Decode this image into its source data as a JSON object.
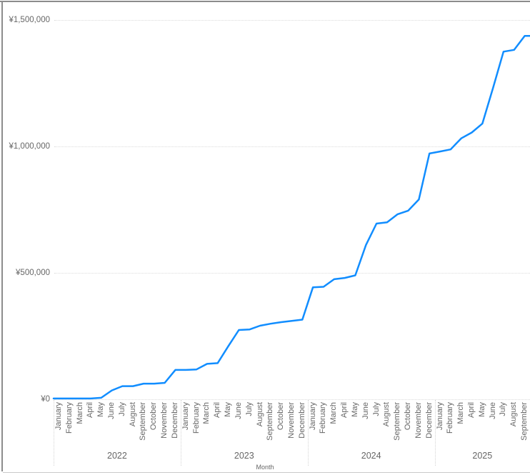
{
  "chart_data": {
    "type": "line",
    "title": "",
    "xlabel": "Month",
    "ylabel": "",
    "legend": false,
    "grid": true,
    "ylim": [
      0,
      1500000
    ],
    "line_color": "#118DFF",
    "y_ticks": [
      {
        "value": 0,
        "label": "¥0"
      },
      {
        "value": 500000,
        "label": "¥500,000"
      },
      {
        "value": 1000000,
        "label": "¥1,000,000"
      },
      {
        "value": 1500000,
        "label": "¥1,500,000"
      }
    ],
    "years": [
      {
        "year": "2022",
        "months": [
          "January",
          "February",
          "March",
          "April",
          "May",
          "June",
          "July",
          "August",
          "September",
          "October",
          "November",
          "December"
        ]
      },
      {
        "year": "2023",
        "months": [
          "January",
          "February",
          "March",
          "April",
          "May",
          "June",
          "July",
          "August",
          "September",
          "October",
          "November",
          "December"
        ]
      },
      {
        "year": "2024",
        "months": [
          "January",
          "February",
          "March",
          "April",
          "May",
          "June",
          "July",
          "August",
          "September",
          "October",
          "November",
          "December"
        ]
      },
      {
        "year": "2025",
        "months": [
          "January",
          "February",
          "March",
          "April",
          "May",
          "June",
          "July",
          "August",
          "September"
        ]
      }
    ],
    "values": [
      3000,
      3000,
      3000,
      3000,
      6000,
      35000,
      52000,
      52000,
      62000,
      62000,
      65000,
      116000,
      116000,
      118000,
      140000,
      143000,
      210000,
      274000,
      276000,
      291000,
      299000,
      305000,
      310000,
      315000,
      443000,
      445000,
      475000,
      480000,
      490000,
      610000,
      695000,
      700000,
      732000,
      746000,
      790000,
      972000,
      980000,
      988000,
      1032000,
      1055000,
      1090000,
      1230000,
      1375000,
      1382000,
      1437000
    ]
  }
}
